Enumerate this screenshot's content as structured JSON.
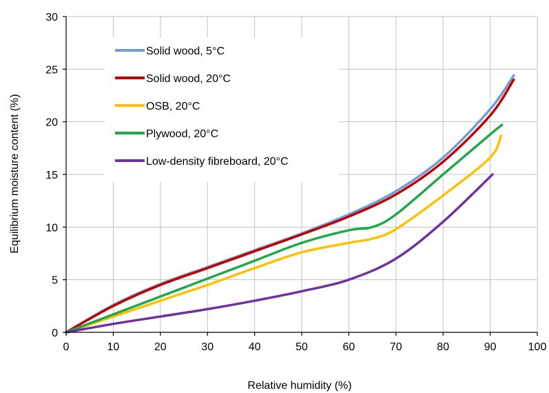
{
  "chart_data": {
    "type": "line",
    "title": "",
    "xlabel": "Relative humidity (%)",
    "ylabel": "Equilibrium moisture content (%)",
    "xlim": [
      0,
      100
    ],
    "ylim": [
      0,
      30
    ],
    "xticks": [
      0,
      10,
      20,
      30,
      40,
      50,
      60,
      70,
      80,
      90,
      100
    ],
    "yticks": [
      0,
      5,
      10,
      15,
      20,
      25,
      30
    ],
    "grid": true,
    "legend_position": "top-left",
    "series": [
      {
        "name": "Solid wood, 5°C",
        "color": "#6f9bd6",
        "x": [
          0,
          10,
          20,
          30,
          40,
          50,
          60,
          70,
          80,
          90,
          95
        ],
        "y": [
          0,
          2.6,
          4.6,
          6.2,
          7.8,
          9.4,
          11.2,
          13.4,
          16.6,
          21.2,
          24.4
        ]
      },
      {
        "name": "Solid wood, 20°C",
        "color": "#c00000",
        "x": [
          0,
          10,
          20,
          30,
          40,
          50,
          60,
          70,
          80,
          90,
          95
        ],
        "y": [
          0,
          2.5,
          4.5,
          6.1,
          7.7,
          9.3,
          11.0,
          13.1,
          16.2,
          20.6,
          24.0
        ]
      },
      {
        "name": "OSB, 20°C",
        "color": "#ffc000",
        "x": [
          0,
          10,
          20,
          30,
          40,
          50,
          60,
          65,
          70,
          80,
          90,
          92.3
        ],
        "y": [
          0,
          1.5,
          3.0,
          4.5,
          6.1,
          7.6,
          8.5,
          8.9,
          9.8,
          13.0,
          16.6,
          18.7
        ]
      },
      {
        "name": "Plywood, 20°C",
        "color": "#1fa847",
        "x": [
          0,
          10,
          20,
          30,
          40,
          50,
          60,
          65,
          70,
          80,
          90,
          92.5
        ],
        "y": [
          0,
          1.7,
          3.4,
          5.1,
          6.8,
          8.5,
          9.7,
          10.0,
          11.2,
          15.0,
          18.8,
          19.7
        ]
      },
      {
        "name": "Low-density fibreboard, 20°C",
        "color": "#7030a0",
        "x": [
          0,
          10,
          20,
          30,
          40,
          50,
          60,
          70,
          80,
          90.5
        ],
        "y": [
          0,
          0.8,
          1.5,
          2.2,
          3.0,
          3.9,
          5.0,
          7.0,
          10.5,
          15.0
        ]
      }
    ]
  }
}
